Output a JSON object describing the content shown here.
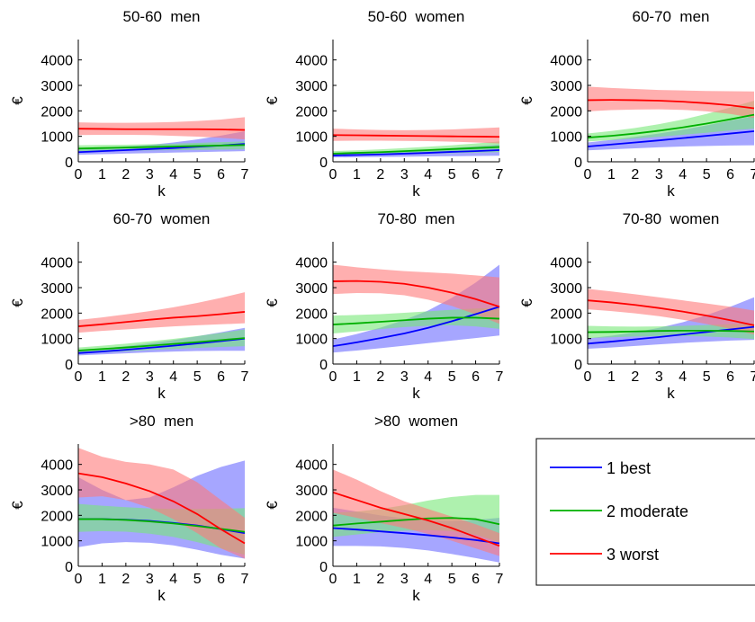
{
  "colors": {
    "best": "#0000ff",
    "moderate": "#00b000",
    "worst": "#ff0000",
    "best_band": "#6a6aff",
    "moderate_band": "#78e878",
    "worst_band": "#ff7a7a"
  },
  "legend": {
    "items": [
      {
        "key": "best",
        "label": "1 best"
      },
      {
        "key": "moderate",
        "label": "2 moderate"
      },
      {
        "key": "worst",
        "label": "3 worst"
      }
    ]
  },
  "chart_data": [
    {
      "type": "line",
      "title": "50-60  men",
      "xlabel": "k",
      "ylabel": "€",
      "x": [
        0,
        1,
        2,
        3,
        4,
        5,
        6,
        7
      ],
      "xlim": [
        0,
        7
      ],
      "ylim": [
        0,
        4800
      ],
      "xticks": [
        "0",
        "1",
        "2",
        "3",
        "4",
        "5",
        "6",
        "7"
      ],
      "yticks": [
        "0",
        "1000",
        "2000",
        "3000",
        "4000"
      ],
      "series": [
        {
          "name": "1 best",
          "key": "best",
          "values": [
            380,
            420,
            460,
            500,
            540,
            590,
            640,
            700
          ],
          "lower": [
            280,
            300,
            320,
            340,
            360,
            380,
            400,
            420
          ],
          "upper": [
            500,
            540,
            600,
            660,
            760,
            880,
            1030,
            1200
          ]
        },
        {
          "name": "2 moderate",
          "key": "moderate",
          "values": [
            520,
            540,
            560,
            580,
            600,
            620,
            640,
            660
          ],
          "lower": [
            420,
            430,
            440,
            450,
            460,
            470,
            480,
            490
          ],
          "upper": [
            650,
            660,
            670,
            690,
            710,
            740,
            770,
            800
          ]
        },
        {
          "name": "3 worst",
          "key": "worst",
          "values": [
            1300,
            1290,
            1280,
            1280,
            1280,
            1280,
            1270,
            1250
          ],
          "lower": [
            1050,
            1060,
            1060,
            1050,
            1020,
            990,
            940,
            880
          ],
          "upper": [
            1550,
            1530,
            1530,
            1540,
            1560,
            1600,
            1660,
            1750
          ]
        }
      ]
    },
    {
      "type": "line",
      "title": "50-60  women",
      "xlabel": "k",
      "ylabel": "€",
      "x": [
        0,
        1,
        2,
        3,
        4,
        5,
        6,
        7
      ],
      "xlim": [
        0,
        7
      ],
      "ylim": [
        0,
        4800
      ],
      "xticks": [
        "0",
        "1",
        "2",
        "3",
        "4",
        "5",
        "6",
        "7"
      ],
      "yticks": [
        "0",
        "1000",
        "2000",
        "3000",
        "4000"
      ],
      "series": [
        {
          "name": "1 best",
          "key": "best",
          "values": [
            250,
            270,
            290,
            320,
            350,
            390,
            420,
            460
          ],
          "lower": [
            170,
            180,
            190,
            200,
            210,
            220,
            230,
            240
          ],
          "upper": [
            330,
            360,
            390,
            430,
            480,
            540,
            610,
            680
          ]
        },
        {
          "name": "2 moderate",
          "key": "moderate",
          "values": [
            320,
            350,
            380,
            420,
            460,
            500,
            540,
            580
          ],
          "lower": [
            240,
            260,
            280,
            300,
            320,
            340,
            360,
            380
          ],
          "upper": [
            420,
            450,
            490,
            540,
            590,
            650,
            720,
            800
          ]
        },
        {
          "name": "3 worst",
          "key": "worst",
          "values": [
            1050,
            1040,
            1030,
            1020,
            1010,
            1000,
            990,
            980
          ],
          "lower": [
            820,
            830,
            830,
            820,
            810,
            790,
            760,
            720
          ],
          "upper": [
            1300,
            1270,
            1250,
            1240,
            1250,
            1270,
            1310,
            1350
          ]
        }
      ]
    },
    {
      "type": "line",
      "title": "60-70  men",
      "xlabel": "k",
      "ylabel": "€",
      "x": [
        0,
        1,
        2,
        3,
        4,
        5,
        6,
        7
      ],
      "xlim": [
        0,
        7
      ],
      "ylim": [
        0,
        4800
      ],
      "xticks": [
        "0",
        "1",
        "2",
        "3",
        "4",
        "5",
        "6",
        "7"
      ],
      "yticks": [
        "0",
        "1000",
        "2000",
        "3000",
        "4000"
      ],
      "series": [
        {
          "name": "1 best",
          "key": "best",
          "values": [
            600,
            680,
            760,
            840,
            930,
            1020,
            1110,
            1200
          ],
          "lower": [
            450,
            490,
            530,
            570,
            600,
            620,
            640,
            650
          ],
          "upper": [
            760,
            860,
            980,
            1110,
            1260,
            1430,
            1620,
            1800
          ]
        },
        {
          "name": "2 moderate",
          "key": "moderate",
          "values": [
            950,
            1020,
            1110,
            1220,
            1350,
            1500,
            1670,
            1850
          ],
          "lower": [
            800,
            850,
            910,
            980,
            1060,
            1140,
            1230,
            1300
          ],
          "upper": [
            1110,
            1210,
            1330,
            1480,
            1660,
            1880,
            2130,
            2400
          ]
        },
        {
          "name": "3 worst",
          "key": "worst",
          "values": [
            2420,
            2430,
            2420,
            2400,
            2360,
            2300,
            2220,
            2100
          ],
          "lower": [
            1980,
            2030,
            2050,
            2060,
            2040,
            1980,
            1880,
            1720
          ],
          "upper": [
            2950,
            2900,
            2860,
            2820,
            2800,
            2780,
            2770,
            2760
          ]
        }
      ]
    },
    {
      "type": "line",
      "title": "60-70  women",
      "xlabel": "k",
      "ylabel": "€",
      "x": [
        0,
        1,
        2,
        3,
        4,
        5,
        6,
        7
      ],
      "xlim": [
        0,
        7
      ],
      "ylim": [
        0,
        4800
      ],
      "xticks": [
        "0",
        "1",
        "2",
        "3",
        "4",
        "5",
        "6",
        "7"
      ],
      "yticks": [
        "0",
        "1000",
        "2000",
        "3000",
        "4000"
      ],
      "series": [
        {
          "name": "1 best",
          "key": "best",
          "values": [
            430,
            490,
            560,
            640,
            720,
            810,
            900,
            1000
          ],
          "lower": [
            340,
            380,
            420,
            460,
            490,
            510,
            520,
            520
          ],
          "upper": [
            530,
            610,
            700,
            810,
            940,
            1090,
            1250,
            1420
          ]
        },
        {
          "name": "2 moderate",
          "key": "moderate",
          "values": [
            530,
            590,
            650,
            720,
            790,
            860,
            940,
            1020
          ],
          "lower": [
            420,
            460,
            500,
            550,
            590,
            630,
            670,
            700
          ],
          "upper": [
            650,
            720,
            800,
            890,
            990,
            1100,
            1220,
            1360
          ]
        },
        {
          "name": "3 worst",
          "key": "worst",
          "values": [
            1480,
            1560,
            1650,
            1740,
            1820,
            1880,
            1960,
            2050
          ],
          "lower": [
            1230,
            1300,
            1360,
            1420,
            1480,
            1520,
            1560,
            1600
          ],
          "upper": [
            1730,
            1830,
            1950,
            2080,
            2230,
            2400,
            2600,
            2820
          ]
        }
      ]
    },
    {
      "type": "line",
      "title": "70-80  men",
      "xlabel": "k",
      "ylabel": "€",
      "x": [
        0,
        1,
        2,
        3,
        4,
        5,
        6,
        7
      ],
      "xlim": [
        0,
        7
      ],
      "ylim": [
        0,
        4800
      ],
      "xticks": [
        "0",
        "1",
        "2",
        "3",
        "4",
        "5",
        "6",
        "7"
      ],
      "yticks": [
        "0",
        "1000",
        "2000",
        "3000",
        "4000"
      ],
      "series": [
        {
          "name": "1 best",
          "key": "best",
          "values": [
            700,
            850,
            1020,
            1200,
            1420,
            1680,
            1960,
            2250
          ],
          "lower": [
            450,
            530,
            620,
            720,
            820,
            920,
            1020,
            1120
          ],
          "upper": [
            960,
            1180,
            1430,
            1730,
            2100,
            2600,
            3200,
            3900
          ]
        },
        {
          "name": "2 moderate",
          "key": "moderate",
          "values": [
            1550,
            1600,
            1660,
            1720,
            1780,
            1820,
            1820,
            1780
          ],
          "lower": [
            1200,
            1280,
            1370,
            1450,
            1500,
            1520,
            1480,
            1380
          ],
          "upper": [
            1900,
            1930,
            1960,
            2010,
            2070,
            2130,
            2180,
            2200
          ]
        },
        {
          "name": "3 worst",
          "key": "worst",
          "values": [
            3250,
            3260,
            3230,
            3150,
            3000,
            2800,
            2550,
            2250
          ],
          "lower": [
            2750,
            2790,
            2780,
            2700,
            2530,
            2280,
            1950,
            1580
          ],
          "upper": [
            3900,
            3800,
            3720,
            3650,
            3600,
            3550,
            3480,
            3400
          ]
        }
      ]
    },
    {
      "type": "line",
      "title": "70-80  women",
      "xlabel": "k",
      "ylabel": "€",
      "x": [
        0,
        1,
        2,
        3,
        4,
        5,
        6,
        7
      ],
      "xlim": [
        0,
        7
      ],
      "ylim": [
        0,
        4800
      ],
      "xticks": [
        "0",
        "1",
        "2",
        "3",
        "4",
        "5",
        "6",
        "7"
      ],
      "yticks": [
        "0",
        "1000",
        "2000",
        "3000",
        "4000"
      ],
      "series": [
        {
          "name": "1 best",
          "key": "best",
          "values": [
            800,
            880,
            970,
            1060,
            1160,
            1260,
            1360,
            1460
          ],
          "lower": [
            600,
            650,
            710,
            770,
            830,
            880,
            920,
            950
          ],
          "upper": [
            1010,
            1110,
            1250,
            1420,
            1640,
            1920,
            2250,
            2620
          ]
        },
        {
          "name": "2 moderate",
          "key": "moderate",
          "values": [
            1250,
            1260,
            1280,
            1300,
            1310,
            1310,
            1300,
            1280
          ],
          "lower": [
            1020,
            1050,
            1080,
            1100,
            1100,
            1080,
            1040,
            980
          ],
          "upper": [
            1500,
            1480,
            1470,
            1480,
            1500,
            1530,
            1560,
            1600
          ]
        },
        {
          "name": "3 worst",
          "key": "worst",
          "values": [
            2500,
            2420,
            2320,
            2200,
            2060,
            1900,
            1720,
            1520
          ],
          "lower": [
            2150,
            2080,
            1990,
            1880,
            1740,
            1570,
            1380,
            1160
          ],
          "upper": [
            2950,
            2850,
            2740,
            2620,
            2500,
            2380,
            2250,
            2100
          ]
        }
      ]
    },
    {
      "type": "line",
      "title": ">80  men",
      "xlabel": "k",
      "ylabel": "€",
      "x": [
        0,
        1,
        2,
        3,
        4,
        5,
        6,
        7
      ],
      "xlim": [
        0,
        7
      ],
      "ylim": [
        0,
        4800
      ],
      "xticks": [
        "0",
        "1",
        "2",
        "3",
        "4",
        "5",
        "6",
        "7"
      ],
      "yticks": [
        "0",
        "1000",
        "2000",
        "3000",
        "4000"
      ],
      "series": [
        {
          "name": "1 best",
          "key": "best",
          "values": [
            1850,
            1850,
            1830,
            1780,
            1700,
            1600,
            1460,
            1300
          ],
          "lower": [
            750,
            900,
            950,
            920,
            820,
            650,
            450,
            300
          ],
          "upper": [
            3500,
            3000,
            2600,
            2700,
            3100,
            3550,
            3900,
            4150
          ]
        },
        {
          "name": "2 moderate",
          "key": "moderate",
          "values": [
            1850,
            1850,
            1820,
            1760,
            1680,
            1580,
            1470,
            1350
          ],
          "lower": [
            1350,
            1380,
            1360,
            1280,
            1150,
            950,
            700,
            450
          ],
          "upper": [
            2450,
            2380,
            2320,
            2270,
            2250,
            2250,
            2260,
            2280
          ]
        },
        {
          "name": "3 worst",
          "key": "worst",
          "values": [
            3650,
            3500,
            3250,
            2950,
            2550,
            2050,
            1450,
            900
          ],
          "lower": [
            2700,
            2750,
            2600,
            2300,
            1850,
            1300,
            700,
            300
          ],
          "upper": [
            4650,
            4300,
            4100,
            4000,
            3800,
            3300,
            2600,
            1900
          ]
        }
      ]
    },
    {
      "type": "line",
      "title": ">80  women",
      "xlabel": "k",
      "ylabel": "€",
      "x": [
        0,
        1,
        2,
        3,
        4,
        5,
        6,
        7
      ],
      "xlim": [
        0,
        7
      ],
      "ylim": [
        0,
        4800
      ],
      "xticks": [
        "0",
        "1",
        "2",
        "3",
        "4",
        "5",
        "6",
        "7"
      ],
      "yticks": [
        "0",
        "1000",
        "2000",
        "3000",
        "4000"
      ],
      "series": [
        {
          "name": "1 best",
          "key": "best",
          "values": [
            1500,
            1440,
            1370,
            1300,
            1220,
            1130,
            1030,
            900
          ],
          "lower": [
            800,
            800,
            780,
            720,
            620,
            480,
            320,
            150
          ],
          "upper": [
            2300,
            2150,
            2000,
            1880,
            1800,
            1780,
            1820,
            1900
          ]
        },
        {
          "name": "2 moderate",
          "key": "moderate",
          "values": [
            1600,
            1680,
            1750,
            1820,
            1880,
            1900,
            1850,
            1650
          ],
          "lower": [
            1150,
            1250,
            1340,
            1400,
            1420,
            1380,
            1240,
            950
          ],
          "upper": [
            2100,
            2150,
            2250,
            2400,
            2580,
            2720,
            2800,
            2800
          ]
        },
        {
          "name": "3 worst",
          "key": "worst",
          "values": [
            2900,
            2600,
            2300,
            2050,
            1800,
            1500,
            1150,
            800
          ],
          "lower": [
            2100,
            1900,
            1700,
            1500,
            1270,
            1000,
            700,
            400
          ],
          "upper": [
            3800,
            3400,
            2950,
            2550,
            2250,
            1950,
            1650,
            1300
          ]
        }
      ]
    }
  ]
}
